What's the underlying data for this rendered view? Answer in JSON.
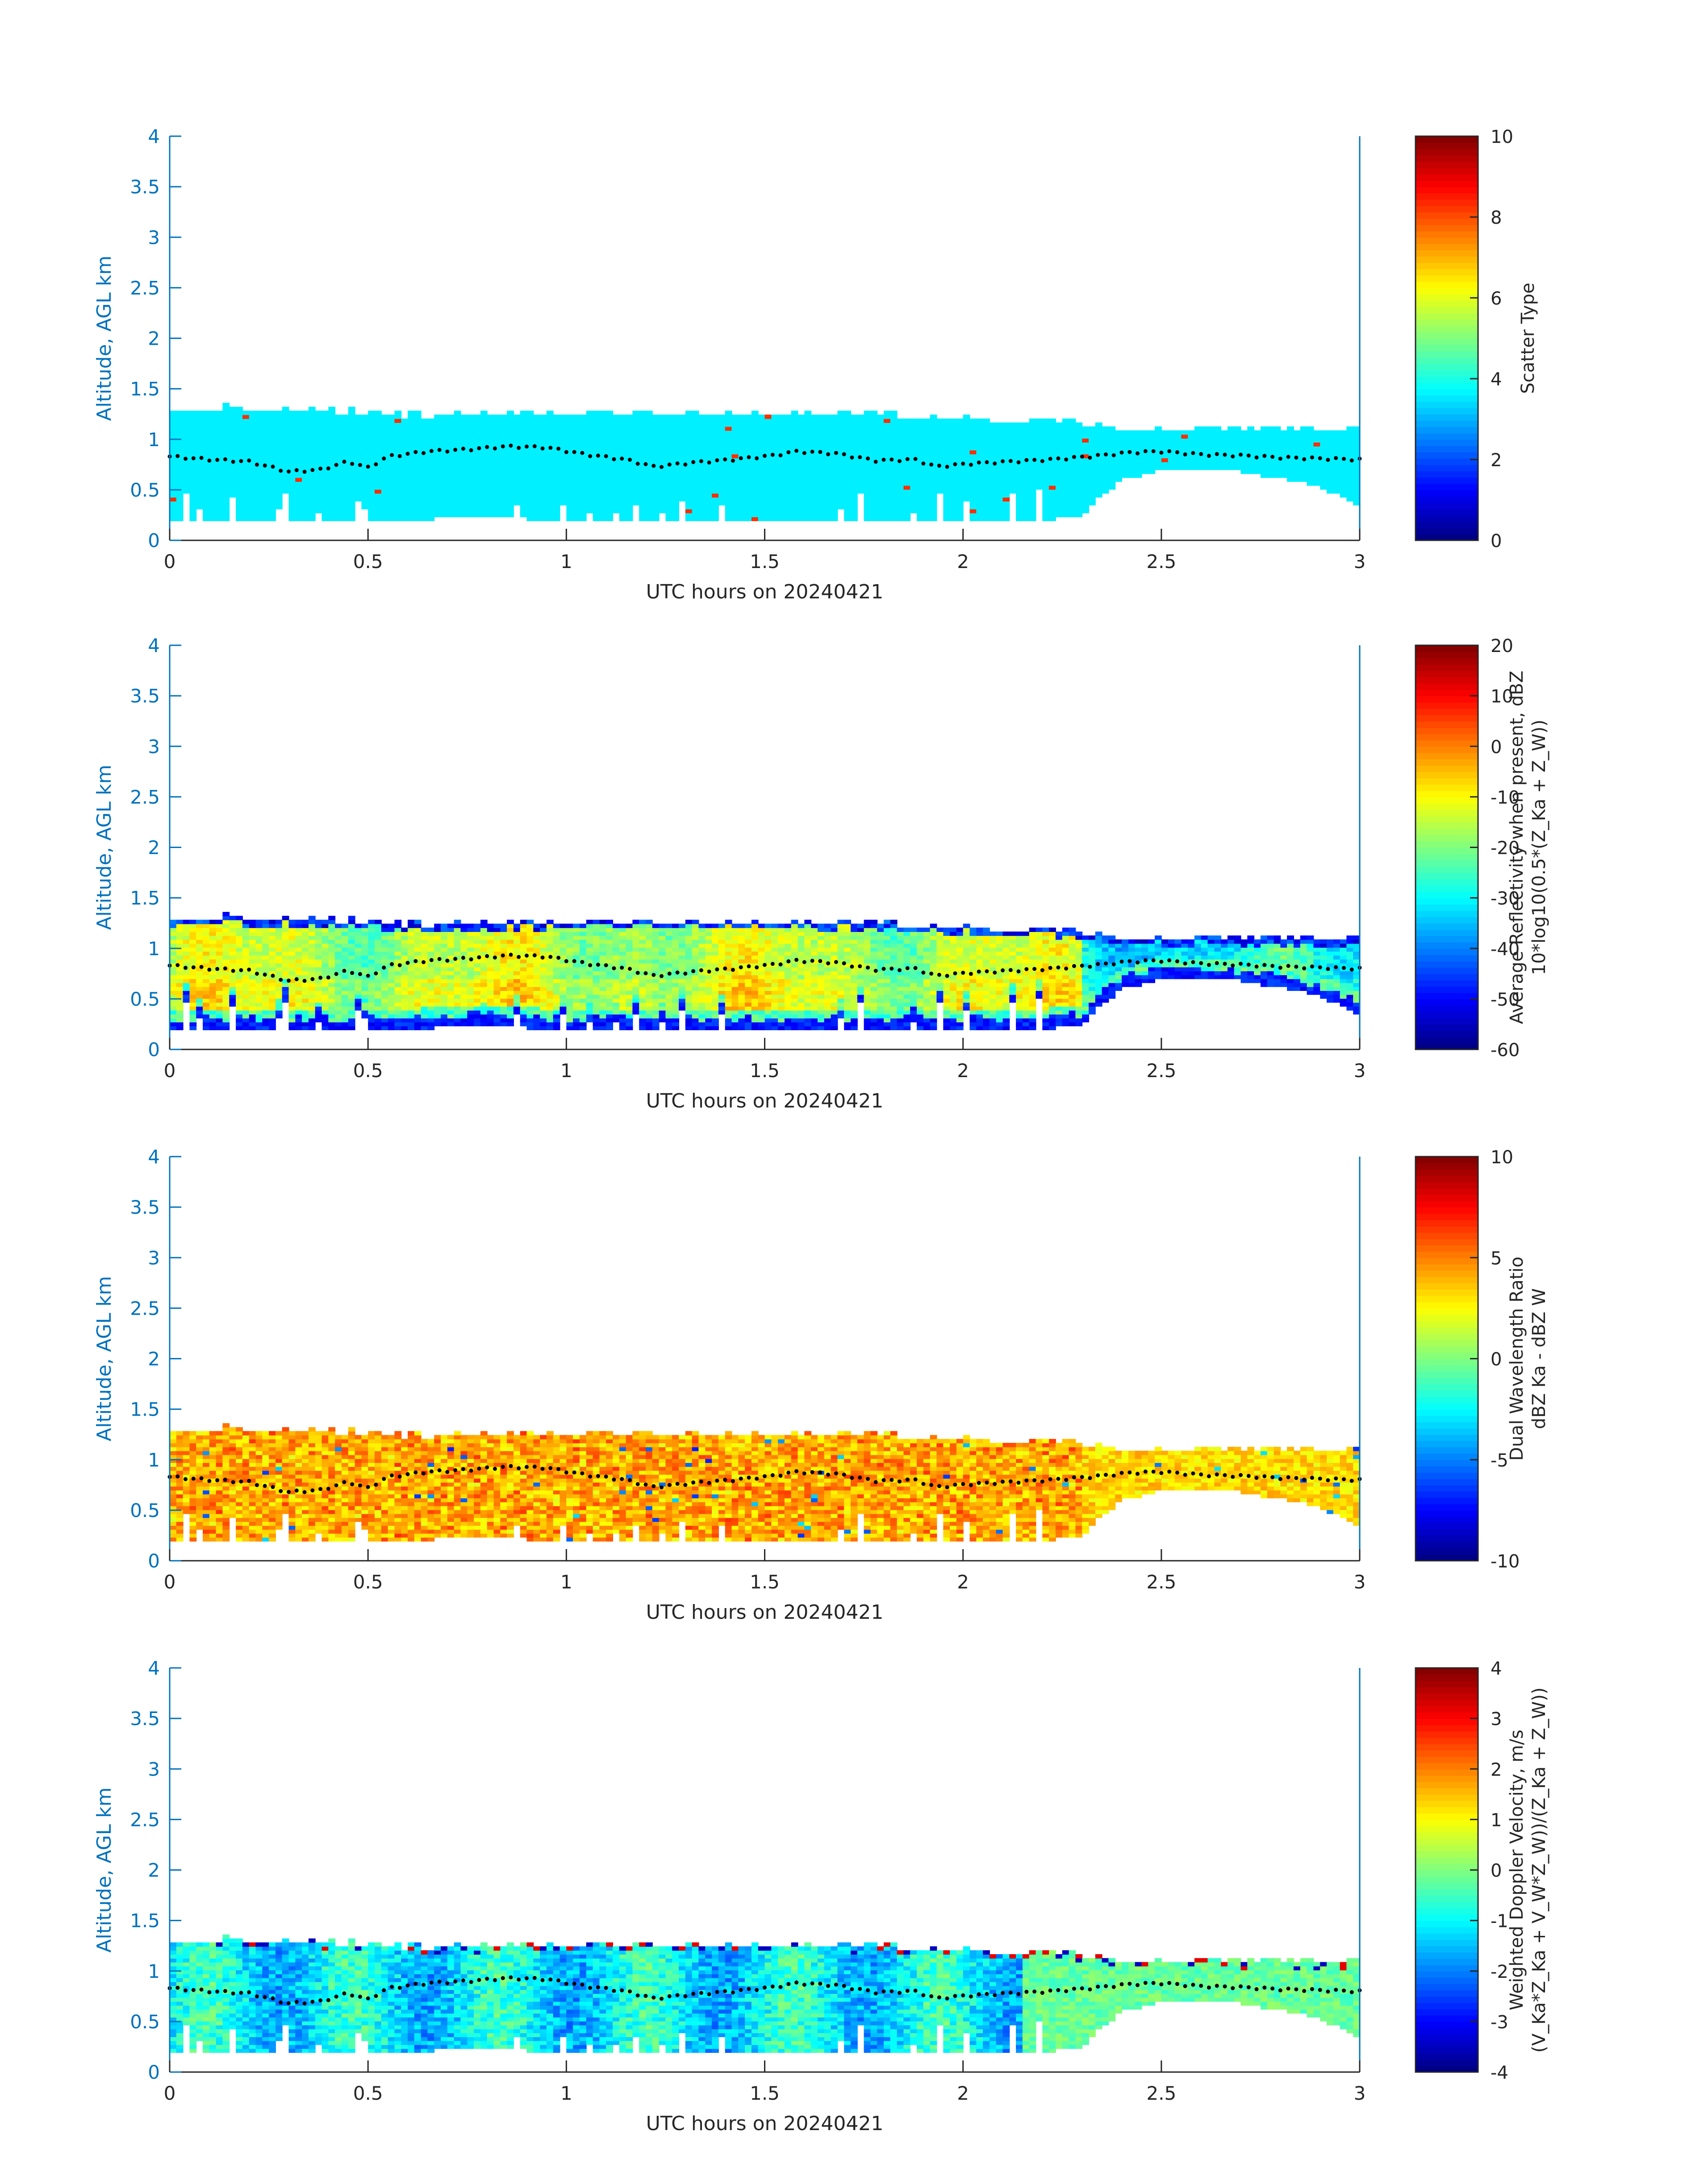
{
  "chart_data": [
    {
      "type": "heatmap",
      "title": "",
      "xlabel": "UTC hours on 20240421",
      "ylabel": "Altitude, AGL km",
      "xlim": [
        0,
        3
      ],
      "ylim": [
        0,
        4
      ],
      "xticks": [
        {
          "v": 0,
          "label": "0"
        },
        {
          "v": 0.5,
          "label": "0.5"
        },
        {
          "v": 1,
          "label": "1"
        },
        {
          "v": 1.5,
          "label": "1.5"
        },
        {
          "v": 2,
          "label": "2"
        },
        {
          "v": 2.5,
          "label": "2.5"
        },
        {
          "v": 3,
          "label": "3"
        }
      ],
      "yticks": [
        {
          "v": 0,
          "label": "0"
        },
        {
          "v": 0.5,
          "label": "0.5"
        },
        {
          "v": 1,
          "label": "1"
        },
        {
          "v": 1.5,
          "label": "1.5"
        },
        {
          "v": 2,
          "label": "2"
        },
        {
          "v": 2.5,
          "label": "2.5"
        },
        {
          "v": 3,
          "label": "3"
        },
        {
          "v": 3.5,
          "label": "3.5"
        },
        {
          "v": 4,
          "label": "4"
        }
      ],
      "colorbar": {
        "label_lines": [
          "Scatter Type"
        ],
        "range": [
          0,
          10
        ],
        "ticks": [
          {
            "v": 0,
            "label": "0"
          },
          {
            "v": 2,
            "label": "2"
          },
          {
            "v": 4,
            "label": "4"
          },
          {
            "v": 6,
            "label": "6"
          },
          {
            "v": 8,
            "label": "8"
          },
          {
            "v": 10,
            "label": "10"
          }
        ]
      },
      "field": "scatter",
      "dominant_value": 3.6,
      "outlier_value": 8.3
    },
    {
      "type": "heatmap",
      "title": "",
      "xlabel": "UTC hours on 20240421",
      "ylabel": "Altitude, AGL km",
      "xlim": [
        0,
        3
      ],
      "ylim": [
        0,
        4
      ],
      "xticks": [
        {
          "v": 0,
          "label": "0"
        },
        {
          "v": 0.5,
          "label": "0.5"
        },
        {
          "v": 1,
          "label": "1"
        },
        {
          "v": 1.5,
          "label": "1.5"
        },
        {
          "v": 2,
          "label": "2"
        },
        {
          "v": 2.5,
          "label": "2.5"
        },
        {
          "v": 3,
          "label": "3"
        }
      ],
      "yticks": [
        {
          "v": 0,
          "label": "0"
        },
        {
          "v": 0.5,
          "label": "0.5"
        },
        {
          "v": 1,
          "label": "1"
        },
        {
          "v": 1.5,
          "label": "1.5"
        },
        {
          "v": 2,
          "label": "2"
        },
        {
          "v": 2.5,
          "label": "2.5"
        },
        {
          "v": 3,
          "label": "3"
        },
        {
          "v": 3.5,
          "label": "3.5"
        },
        {
          "v": 4,
          "label": "4"
        }
      ],
      "colorbar": {
        "label_lines": [
          "Average Reflectivity when present, dBZ",
          "10*log10(0.5*(Z_Ka + Z_W))"
        ],
        "range": [
          -60,
          20
        ],
        "ticks": [
          {
            "v": -60,
            "label": "-60"
          },
          {
            "v": -50,
            "label": "-50"
          },
          {
            "v": -40,
            "label": "-40"
          },
          {
            "v": -30,
            "label": "-30"
          },
          {
            "v": -20,
            "label": "-20"
          },
          {
            "v": -10,
            "label": "-10"
          },
          {
            "v": 0,
            "label": "0"
          },
          {
            "v": 10,
            "label": "10"
          },
          {
            "v": 20,
            "label": "20"
          }
        ]
      },
      "field": "reflectivity"
    },
    {
      "type": "heatmap",
      "title": "",
      "xlabel": "UTC hours on 20240421",
      "ylabel": "Altitude, AGL km",
      "xlim": [
        0,
        3
      ],
      "ylim": [
        0,
        4
      ],
      "xticks": [
        {
          "v": 0,
          "label": "0"
        },
        {
          "v": 0.5,
          "label": "0.5"
        },
        {
          "v": 1,
          "label": "1"
        },
        {
          "v": 1.5,
          "label": "1.5"
        },
        {
          "v": 2,
          "label": "2"
        },
        {
          "v": 2.5,
          "label": "2.5"
        },
        {
          "v": 3,
          "label": "3"
        }
      ],
      "yticks": [
        {
          "v": 0,
          "label": "0"
        },
        {
          "v": 0.5,
          "label": "0.5"
        },
        {
          "v": 1,
          "label": "1"
        },
        {
          "v": 1.5,
          "label": "1.5"
        },
        {
          "v": 2,
          "label": "2"
        },
        {
          "v": 2.5,
          "label": "2.5"
        },
        {
          "v": 3,
          "label": "3"
        },
        {
          "v": 3.5,
          "label": "3.5"
        },
        {
          "v": 4,
          "label": "4"
        }
      ],
      "colorbar": {
        "label_lines": [
          "Dual Wavelength Ratio",
          "dBZ Ka - dBZ W"
        ],
        "range": [
          -10,
          10
        ],
        "ticks": [
          {
            "v": -10,
            "label": "-10"
          },
          {
            "v": -5,
            "label": "-5"
          },
          {
            "v": 0,
            "label": "0"
          },
          {
            "v": 5,
            "label": "5"
          },
          {
            "v": 10,
            "label": "10"
          }
        ]
      },
      "field": "dwr"
    },
    {
      "type": "heatmap",
      "title": "",
      "xlabel": "UTC hours on 20240421",
      "ylabel": "Altitude, AGL km",
      "xlim": [
        0,
        3
      ],
      "ylim": [
        0,
        4
      ],
      "xticks": [
        {
          "v": 0,
          "label": "0"
        },
        {
          "v": 0.5,
          "label": "0.5"
        },
        {
          "v": 1,
          "label": "1"
        },
        {
          "v": 1.5,
          "label": "1.5"
        },
        {
          "v": 2,
          "label": "2"
        },
        {
          "v": 2.5,
          "label": "2.5"
        },
        {
          "v": 3,
          "label": "3"
        }
      ],
      "yticks": [
        {
          "v": 0,
          "label": "0"
        },
        {
          "v": 0.5,
          "label": "0.5"
        },
        {
          "v": 1,
          "label": "1"
        },
        {
          "v": 1.5,
          "label": "1.5"
        },
        {
          "v": 2,
          "label": "2"
        },
        {
          "v": 2.5,
          "label": "2.5"
        },
        {
          "v": 3,
          "label": "3"
        },
        {
          "v": 3.5,
          "label": "3.5"
        },
        {
          "v": 4,
          "label": "4"
        }
      ],
      "colorbar": {
        "label_lines": [
          "Weighted Doppler Velocity, m/s",
          "(V_Ka*Z_Ka + V_W*Z_W))/(Z_Ka + Z_W))"
        ],
        "range": [
          -4,
          4
        ],
        "ticks": [
          {
            "v": -4,
            "label": "-4"
          },
          {
            "v": -3,
            "label": "-3"
          },
          {
            "v": -2,
            "label": "-2"
          },
          {
            "v": -1,
            "label": "-1"
          },
          {
            "v": 0,
            "label": "0"
          },
          {
            "v": 1,
            "label": "1"
          },
          {
            "v": 2,
            "label": "2"
          },
          {
            "v": 3,
            "label": "3"
          },
          {
            "v": 4,
            "label": "4"
          }
        ]
      },
      "field": "velocity"
    }
  ],
  "cloud_layer": {
    "cloud_top_km": [
      [
        0.0,
        1.25
      ],
      [
        0.02,
        1.3
      ],
      [
        0.1,
        1.3
      ],
      [
        0.2,
        1.28
      ],
      [
        0.35,
        1.27
      ],
      [
        0.5,
        1.25
      ],
      [
        0.6,
        1.22
      ],
      [
        1.0,
        1.25
      ],
      [
        1.5,
        1.25
      ],
      [
        1.6,
        1.25
      ],
      [
        2.0,
        1.2
      ],
      [
        2.1,
        1.18
      ],
      [
        2.3,
        1.15
      ],
      [
        2.4,
        1.1
      ],
      [
        2.6,
        1.08
      ],
      [
        2.8,
        1.07
      ],
      [
        3.0,
        1.07
      ]
    ],
    "cloud_base_km": [
      [
        0.0,
        0.2
      ],
      [
        0.55,
        0.2
      ],
      [
        0.6,
        0.2
      ],
      [
        0.7,
        0.22
      ],
      [
        0.8,
        0.25
      ],
      [
        0.95,
        0.2
      ],
      [
        1.0,
        0.2
      ],
      [
        2.0,
        0.2
      ],
      [
        2.2,
        0.2
      ],
      [
        2.3,
        0.25
      ],
      [
        2.35,
        0.45
      ],
      [
        2.4,
        0.6
      ],
      [
        2.5,
        0.7
      ],
      [
        2.7,
        0.68
      ],
      [
        2.85,
        0.58
      ],
      [
        2.95,
        0.45
      ],
      [
        3.0,
        0.35
      ]
    ],
    "boundary_dots_km": [
      [
        0.0,
        0.83
      ],
      [
        0.1,
        0.8
      ],
      [
        0.2,
        0.78
      ],
      [
        0.3,
        0.68
      ],
      [
        0.38,
        0.7
      ],
      [
        0.45,
        0.78
      ],
      [
        0.5,
        0.72
      ],
      [
        0.55,
        0.83
      ],
      [
        0.65,
        0.88
      ],
      [
        0.75,
        0.9
      ],
      [
        0.85,
        0.93
      ],
      [
        0.95,
        0.92
      ],
      [
        1.05,
        0.85
      ],
      [
        1.15,
        0.8
      ],
      [
        1.22,
        0.73
      ],
      [
        1.32,
        0.77
      ],
      [
        1.42,
        0.8
      ],
      [
        1.52,
        0.84
      ],
      [
        1.58,
        0.88
      ],
      [
        1.68,
        0.86
      ],
      [
        1.78,
        0.79
      ],
      [
        1.88,
        0.8
      ],
      [
        1.93,
        0.73
      ],
      [
        2.02,
        0.76
      ],
      [
        2.12,
        0.78
      ],
      [
        2.22,
        0.8
      ],
      [
        2.32,
        0.83
      ],
      [
        2.42,
        0.87
      ],
      [
        2.5,
        0.88
      ],
      [
        2.6,
        0.85
      ],
      [
        2.7,
        0.84
      ],
      [
        2.8,
        0.82
      ],
      [
        2.9,
        0.81
      ],
      [
        3.0,
        0.8
      ]
    ]
  }
}
